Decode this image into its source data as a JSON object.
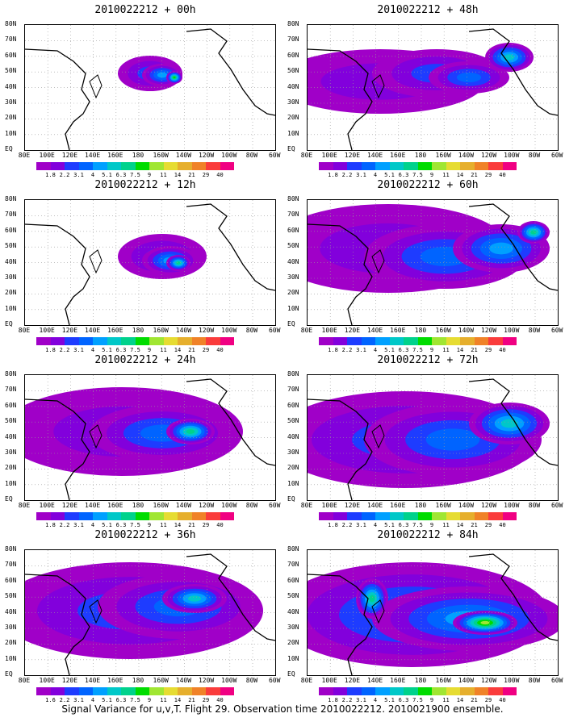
{
  "panels": [
    {
      "title": "2010022212 + 00h"
    },
    {
      "title": "2010022212 + 48h"
    },
    {
      "title": "2010022212 + 12h"
    },
    {
      "title": "2010022212 + 60h"
    },
    {
      "title": "2010022212 + 24h"
    },
    {
      "title": "2010022212 + 72h"
    },
    {
      "title": "2010022212 + 36h"
    },
    {
      "title": "2010022212 + 84h"
    }
  ],
  "axes": {
    "lat_labels": [
      "80N",
      "70N",
      "60N",
      "50N",
      "40N",
      "30N",
      "20N",
      "10N",
      "EQ"
    ],
    "lon_labels": [
      "80E",
      "100E",
      "120E",
      "140E",
      "160E",
      "180",
      "160W",
      "140W",
      "120W",
      "100W",
      "80W",
      "60W"
    ]
  },
  "colorbar": {
    "labels": [
      "1.8",
      "2.2",
      "3.1",
      "4",
      "5.1",
      "6.3",
      "7.5",
      "9",
      "11",
      "14",
      "21",
      "29",
      "40"
    ],
    "labels_36h": [
      "1.6",
      "2.2",
      "3.1",
      "4",
      "5.1",
      "6.3",
      "7.5",
      "9",
      "11",
      "14",
      "21",
      "29",
      "40"
    ],
    "colors": [
      "#a000c8",
      "#8200dc",
      "#1e3cff",
      "#0064ff",
      "#00a0ff",
      "#00c8c8",
      "#00d28c",
      "#00dc00",
      "#a0e632",
      "#e6dc32",
      "#e6af2d",
      "#f08228",
      "#fa3c3c",
      "#f00082"
    ]
  },
  "caption": "Signal Variance for u,v,T. Flight 29. Observation time 2010022212. 2010021900 ensemble."
}
